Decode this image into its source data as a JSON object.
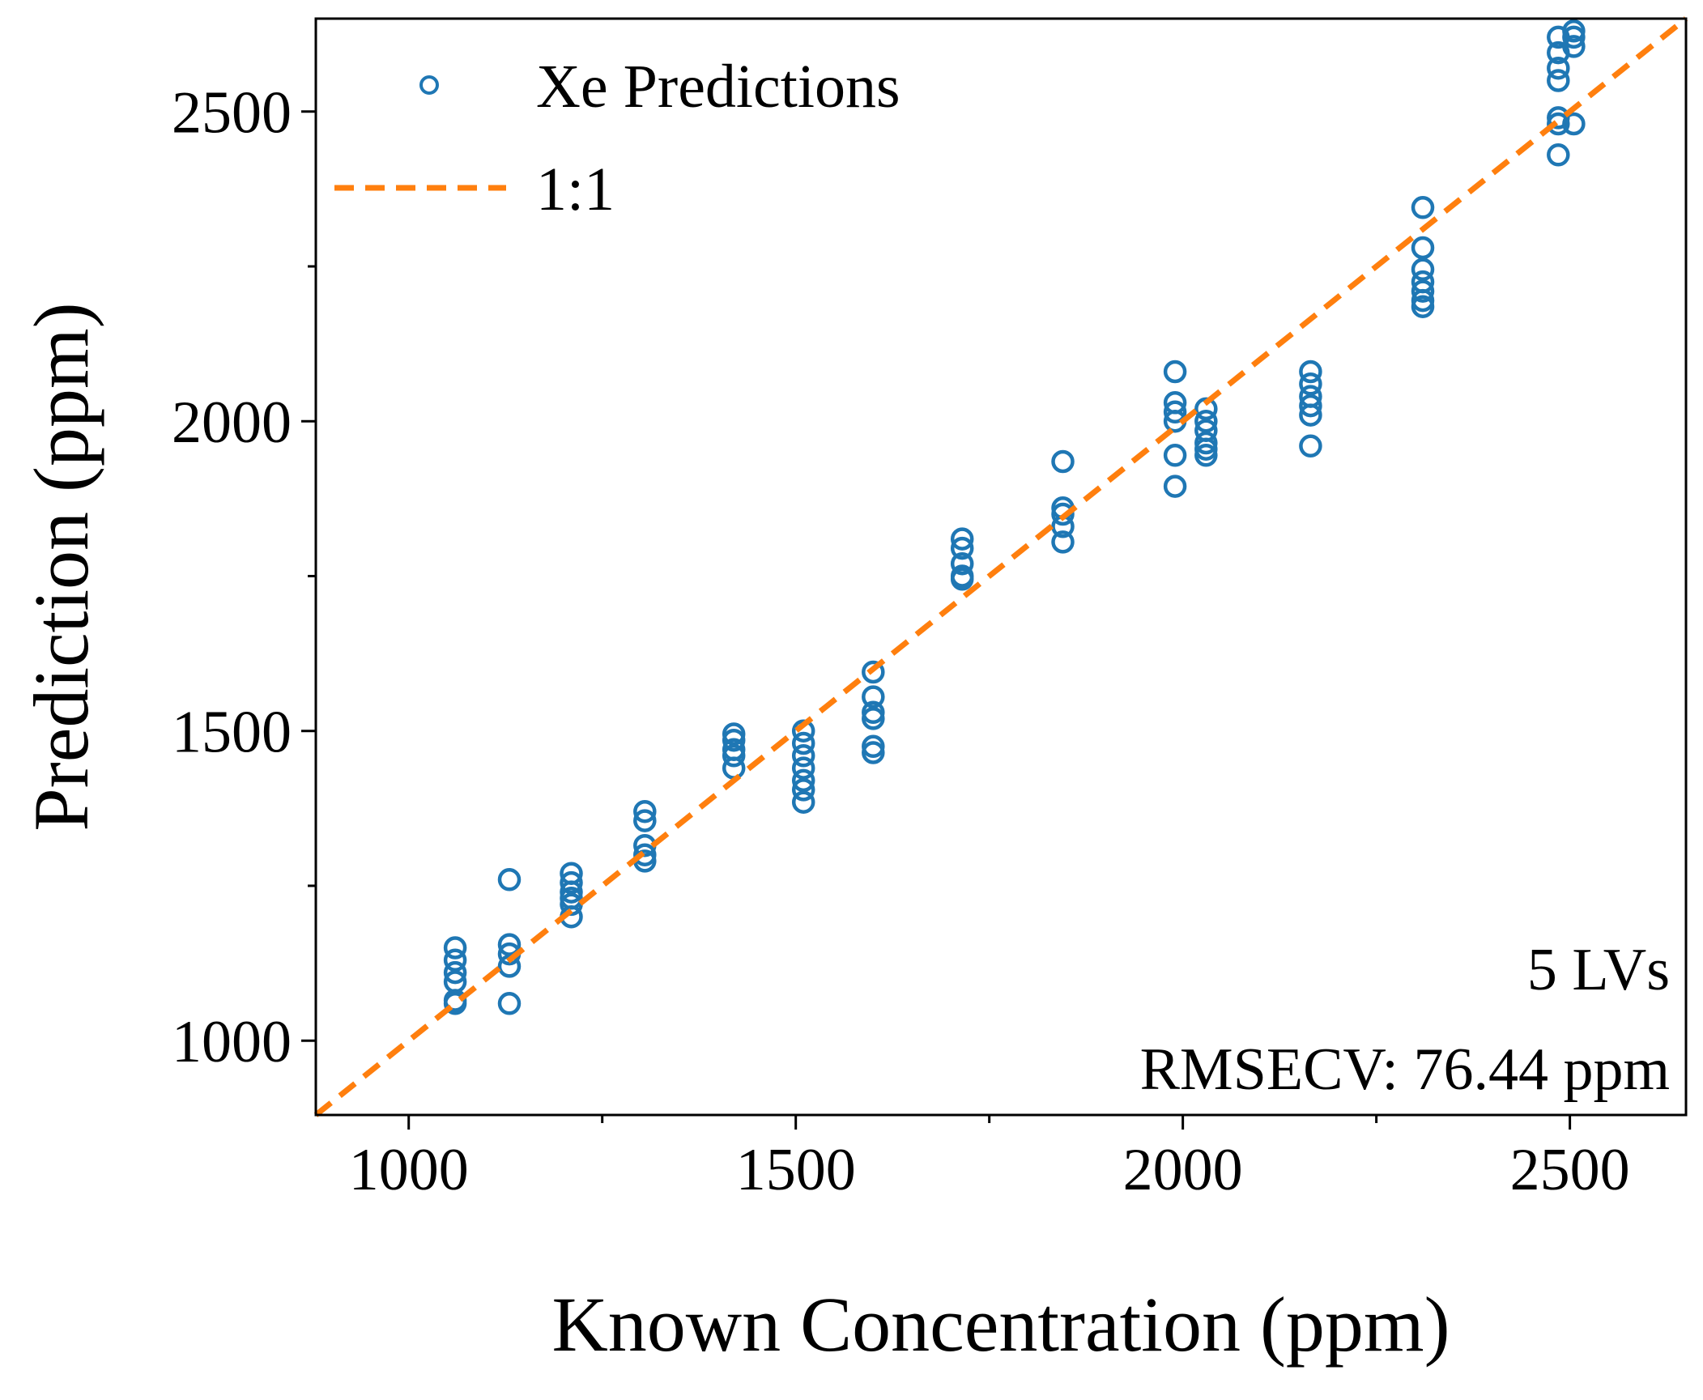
{
  "chart_data": {
    "type": "scatter",
    "title": "",
    "xlabel": "Known Concentration (ppm)",
    "ylabel": "Prediction (ppm)",
    "xlim": [
      880,
      2650
    ],
    "ylim": [
      880,
      2650
    ],
    "xticks": [
      1000,
      1500,
      2000,
      2500
    ],
    "yticks": [
      1000,
      1500,
      2000,
      2500
    ],
    "xtick_labels": [
      "1000",
      "1500",
      "2000",
      "2500"
    ],
    "ytick_labels": [
      "1000",
      "1500",
      "2000",
      "2500"
    ],
    "x_minor_step": 250,
    "y_minor_step": 250,
    "grid": false,
    "legend_position": "top-left",
    "series": [
      {
        "name": "Xe Predictions",
        "marker": "open-circle",
        "color": "#1f77b4",
        "points": [
          [
            1060,
            1150
          ],
          [
            1060,
            1130
          ],
          [
            1060,
            1110
          ],
          [
            1060,
            1095
          ],
          [
            1060,
            1065
          ],
          [
            1060,
            1060
          ],
          [
            1130,
            1260
          ],
          [
            1130,
            1155
          ],
          [
            1130,
            1140
          ],
          [
            1130,
            1120
          ],
          [
            1130,
            1060
          ],
          [
            1210,
            1270
          ],
          [
            1210,
            1255
          ],
          [
            1210,
            1240
          ],
          [
            1210,
            1230
          ],
          [
            1210,
            1220
          ],
          [
            1210,
            1200
          ],
          [
            1305,
            1370
          ],
          [
            1305,
            1355
          ],
          [
            1305,
            1315
          ],
          [
            1305,
            1300
          ],
          [
            1305,
            1290
          ],
          [
            1420,
            1495
          ],
          [
            1420,
            1485
          ],
          [
            1420,
            1470
          ],
          [
            1420,
            1460
          ],
          [
            1420,
            1440
          ],
          [
            1510,
            1500
          ],
          [
            1510,
            1480
          ],
          [
            1510,
            1460
          ],
          [
            1510,
            1440
          ],
          [
            1510,
            1420
          ],
          [
            1510,
            1405
          ],
          [
            1510,
            1385
          ],
          [
            1600,
            1595
          ],
          [
            1600,
            1555
          ],
          [
            1600,
            1530
          ],
          [
            1600,
            1520
          ],
          [
            1600,
            1475
          ],
          [
            1600,
            1465
          ],
          [
            1715,
            1810
          ],
          [
            1715,
            1795
          ],
          [
            1715,
            1770
          ],
          [
            1715,
            1750
          ],
          [
            1715,
            1745
          ],
          [
            1845,
            1935
          ],
          [
            1845,
            1860
          ],
          [
            1845,
            1850
          ],
          [
            1845,
            1830
          ],
          [
            1845,
            1805
          ],
          [
            1990,
            2080
          ],
          [
            1990,
            2030
          ],
          [
            1990,
            2015
          ],
          [
            1990,
            2000
          ],
          [
            1990,
            1945
          ],
          [
            1990,
            1895
          ],
          [
            2030,
            2020
          ],
          [
            2030,
            2000
          ],
          [
            2030,
            1985
          ],
          [
            2030,
            1965
          ],
          [
            2030,
            1955
          ],
          [
            2030,
            1945
          ],
          [
            2165,
            2080
          ],
          [
            2165,
            2060
          ],
          [
            2165,
            2040
          ],
          [
            2165,
            2025
          ],
          [
            2165,
            2010
          ],
          [
            2165,
            1960
          ],
          [
            2310,
            2345
          ],
          [
            2310,
            2280
          ],
          [
            2310,
            2245
          ],
          [
            2310,
            2225
          ],
          [
            2310,
            2210
          ],
          [
            2310,
            2195
          ],
          [
            2310,
            2185
          ],
          [
            2485,
            2620
          ],
          [
            2485,
            2595
          ],
          [
            2485,
            2570
          ],
          [
            2485,
            2550
          ],
          [
            2485,
            2490
          ],
          [
            2485,
            2480
          ],
          [
            2485,
            2430
          ],
          [
            2505,
            2630
          ],
          [
            2505,
            2620
          ],
          [
            2505,
            2605
          ],
          [
            2505,
            2480
          ]
        ]
      },
      {
        "name": "1:1",
        "line_style": "dashed",
        "color": "#ff7f0e",
        "x": [
          880,
          2650
        ],
        "y": [
          880,
          2650
        ]
      }
    ],
    "annotations": [
      "5 LVs",
      "RMSECV: 76.44 ppm"
    ]
  }
}
